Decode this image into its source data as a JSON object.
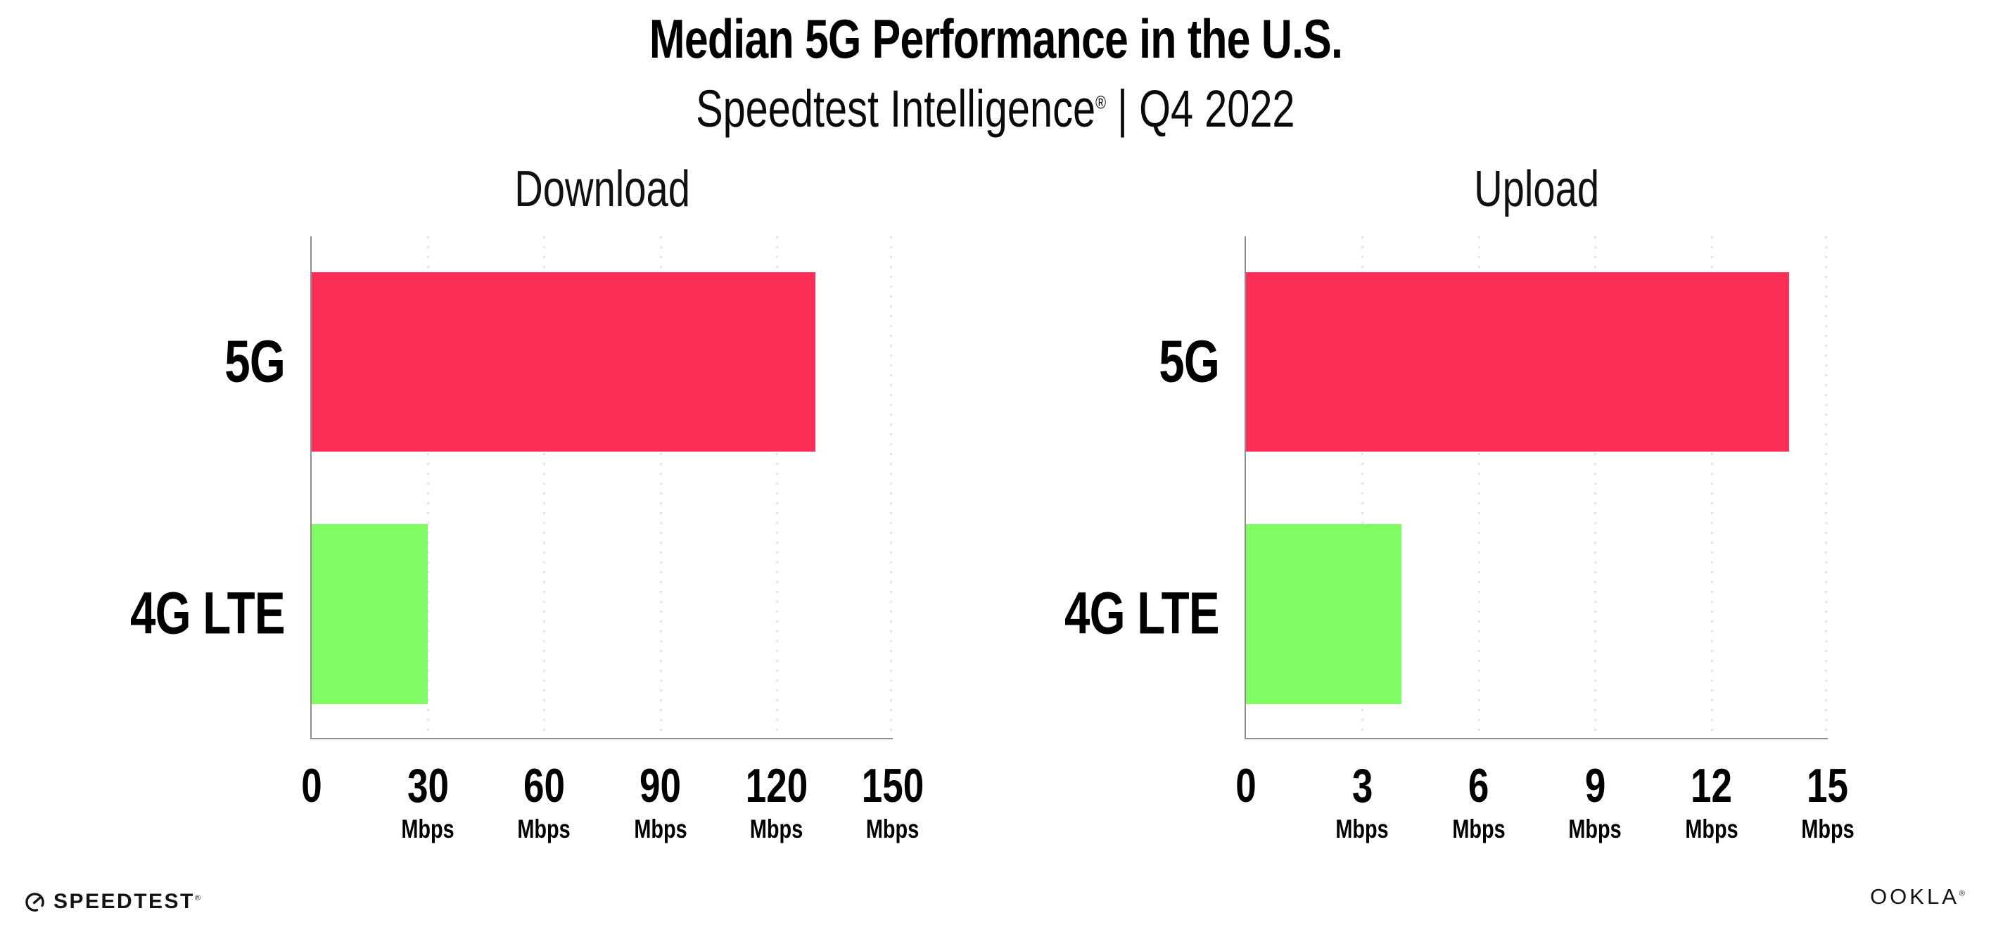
{
  "header": {
    "title": "Median 5G Performance in the U.S.",
    "subtitle_brand": "Speedtest Intelligence",
    "subtitle_reg": "®",
    "subtitle_rest": " | Q4 2022"
  },
  "colors": {
    "bar_5g": "#FC2D57",
    "bar_4g": "#80FB63",
    "axis": "#8E8E8E",
    "gridline": "#E2E2EC",
    "text": "#000000"
  },
  "chart_data": [
    {
      "type": "bar",
      "orientation": "horizontal",
      "title": "Download",
      "categories": [
        "5G",
        "4G LTE"
      ],
      "values": [
        130,
        30
      ],
      "unit": "Mbps",
      "xlim": [
        0,
        150
      ],
      "ticks": [
        0,
        30,
        60,
        90,
        120,
        150
      ],
      "tick_unit_label": "Mbps",
      "grid": "dotted-vertical",
      "legend": "none",
      "bar_colors": [
        "#FC2D57",
        "#80FB63"
      ]
    },
    {
      "type": "bar",
      "orientation": "horizontal",
      "title": "Upload",
      "categories": [
        "5G",
        "4G LTE"
      ],
      "values": [
        14,
        4
      ],
      "unit": "Mbps",
      "xlim": [
        0,
        15
      ],
      "ticks": [
        0,
        3,
        6,
        9,
        12,
        15
      ],
      "tick_unit_label": "Mbps",
      "grid": "dotted-vertical",
      "legend": "none",
      "bar_colors": [
        "#FC2D57",
        "#80FB63"
      ]
    }
  ],
  "footer": {
    "speedtest_label": "SPEEDTEST",
    "speedtest_reg": "®",
    "ookla_label": "OOKLA",
    "ookla_reg": "®"
  }
}
